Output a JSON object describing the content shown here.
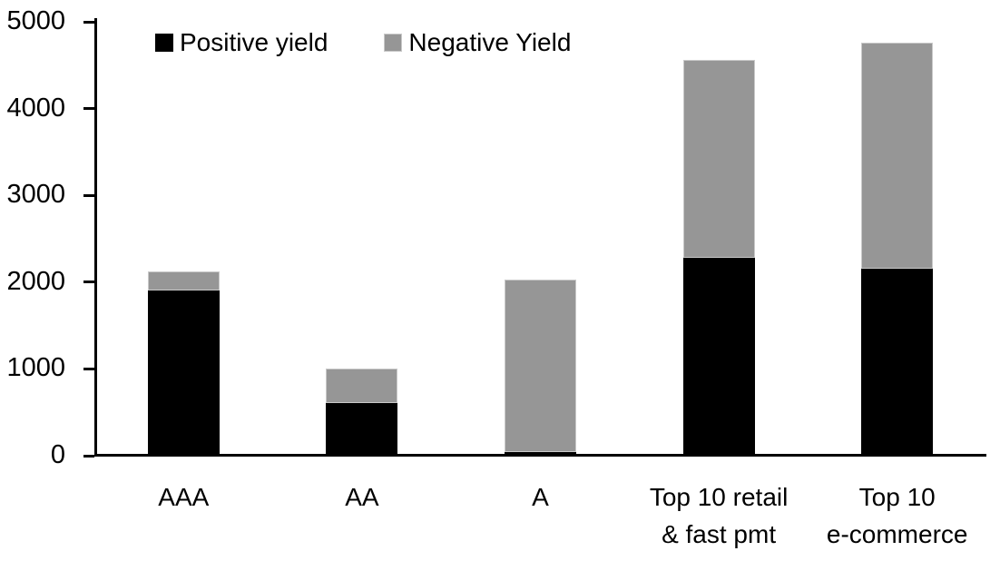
{
  "colors": {
    "background": "#ffffff",
    "axis": "#000000",
    "text": "#000000",
    "positive": "#000000",
    "negative": "#969696",
    "negative_border": "#c9c9c9"
  },
  "chart_data": {
    "type": "bar",
    "stacked": true,
    "title": "",
    "xlabel": "",
    "ylabel": "",
    "categories": [
      "AAA",
      "AA",
      "A",
      "Top 10 retail\n& fast pmt",
      "Top 10\ne-commerce"
    ],
    "series": [
      {
        "name": "Positive yield",
        "color": "#000000",
        "values": [
          1900,
          610,
          40,
          2280,
          2150
        ]
      },
      {
        "name": "Negative Yield",
        "color": "#969696",
        "border_color": "#c9c9c9",
        "values": [
          220,
          390,
          1990,
          2280,
          2610
        ]
      }
    ],
    "totals": [
      2120,
      1000,
      2030,
      4560,
      4760
    ],
    "ylim": [
      0,
      5000
    ],
    "yticks": [
      0,
      1000,
      2000,
      3000,
      4000,
      5000
    ],
    "ytick_interval": 1000,
    "grid": false,
    "legend_position": "top"
  }
}
